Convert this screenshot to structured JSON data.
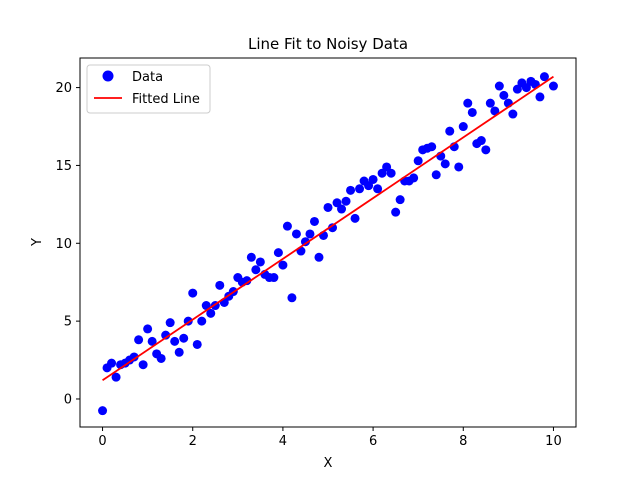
{
  "chart_data": {
    "type": "scatter",
    "title": "Line Fit to Noisy Data",
    "xlabel": "X",
    "ylabel": "Y",
    "xlim": [
      -0.5,
      10.5
    ],
    "ylim": [
      -1.8,
      21.9
    ],
    "xticks": [
      0,
      2,
      4,
      6,
      8,
      10
    ],
    "yticks": [
      0,
      5,
      10,
      15,
      20
    ],
    "grid": false,
    "legend_position": "top-left",
    "series": [
      {
        "name": "Data",
        "kind": "scatter",
        "color": "#0000ff",
        "points": [
          [
            0.0,
            -0.75
          ],
          [
            0.1,
            2.0
          ],
          [
            0.2,
            2.3
          ],
          [
            0.3,
            1.4
          ],
          [
            0.4,
            2.2
          ],
          [
            0.5,
            2.3
          ],
          [
            0.6,
            2.5
          ],
          [
            0.7,
            2.7
          ],
          [
            0.8,
            3.8
          ],
          [
            0.9,
            2.2
          ],
          [
            1.0,
            4.5
          ],
          [
            1.1,
            3.7
          ],
          [
            1.2,
            2.9
          ],
          [
            1.3,
            2.6
          ],
          [
            1.4,
            4.1
          ],
          [
            1.5,
            4.9
          ],
          [
            1.6,
            3.7
          ],
          [
            1.7,
            3.0
          ],
          [
            1.8,
            3.9
          ],
          [
            1.9,
            5.0
          ],
          [
            2.0,
            6.8
          ],
          [
            2.1,
            3.5
          ],
          [
            2.2,
            5.0
          ],
          [
            2.3,
            6.0
          ],
          [
            2.4,
            5.5
          ],
          [
            2.5,
            6.0
          ],
          [
            2.6,
            7.3
          ],
          [
            2.7,
            6.2
          ],
          [
            2.8,
            6.6
          ],
          [
            2.9,
            6.9
          ],
          [
            3.0,
            7.8
          ],
          [
            3.1,
            7.5
          ],
          [
            3.2,
            7.6
          ],
          [
            3.3,
            9.1
          ],
          [
            3.4,
            8.3
          ],
          [
            3.5,
            8.8
          ],
          [
            3.6,
            8.0
          ],
          [
            3.7,
            7.8
          ],
          [
            3.8,
            7.8
          ],
          [
            3.9,
            9.4
          ],
          [
            4.0,
            8.6
          ],
          [
            4.1,
            11.1
          ],
          [
            4.2,
            6.5
          ],
          [
            4.3,
            10.6
          ],
          [
            4.4,
            9.5
          ],
          [
            4.5,
            10.1
          ],
          [
            4.6,
            10.6
          ],
          [
            4.7,
            11.4
          ],
          [
            4.8,
            9.1
          ],
          [
            4.9,
            10.5
          ],
          [
            5.0,
            12.3
          ],
          [
            5.1,
            11.0
          ],
          [
            5.2,
            12.6
          ],
          [
            5.3,
            12.2
          ],
          [
            5.4,
            12.7
          ],
          [
            5.5,
            13.4
          ],
          [
            5.6,
            11.6
          ],
          [
            5.7,
            13.5
          ],
          [
            5.8,
            14.0
          ],
          [
            5.9,
            13.7
          ],
          [
            6.0,
            14.1
          ],
          [
            6.1,
            13.5
          ],
          [
            6.2,
            14.5
          ],
          [
            6.3,
            14.9
          ],
          [
            6.4,
            14.5
          ],
          [
            6.5,
            12.0
          ],
          [
            6.6,
            12.8
          ],
          [
            6.7,
            14.0
          ],
          [
            6.8,
            14.0
          ],
          [
            6.9,
            14.2
          ],
          [
            7.0,
            15.3
          ],
          [
            7.1,
            16.0
          ],
          [
            7.2,
            16.1
          ],
          [
            7.3,
            16.2
          ],
          [
            7.4,
            14.4
          ],
          [
            7.5,
            15.6
          ],
          [
            7.6,
            15.1
          ],
          [
            7.7,
            17.2
          ],
          [
            7.8,
            16.2
          ],
          [
            7.9,
            14.9
          ],
          [
            8.0,
            17.5
          ],
          [
            8.1,
            19.0
          ],
          [
            8.2,
            18.4
          ],
          [
            8.3,
            16.4
          ],
          [
            8.4,
            16.6
          ],
          [
            8.5,
            16.0
          ],
          [
            8.6,
            19.0
          ],
          [
            8.7,
            18.5
          ],
          [
            8.8,
            20.1
          ],
          [
            8.9,
            19.5
          ],
          [
            9.0,
            19.0
          ],
          [
            9.1,
            18.3
          ],
          [
            9.2,
            19.9
          ],
          [
            9.3,
            20.3
          ],
          [
            9.4,
            20.0
          ],
          [
            9.5,
            20.4
          ],
          [
            9.6,
            20.2
          ],
          [
            9.7,
            19.4
          ],
          [
            9.8,
            20.7
          ],
          [
            10.0,
            20.1
          ]
        ]
      },
      {
        "name": "Fitted Line",
        "kind": "line",
        "color": "#ff0000",
        "x": [
          0,
          10
        ],
        "y": [
          1.2,
          20.7
        ]
      }
    ]
  }
}
